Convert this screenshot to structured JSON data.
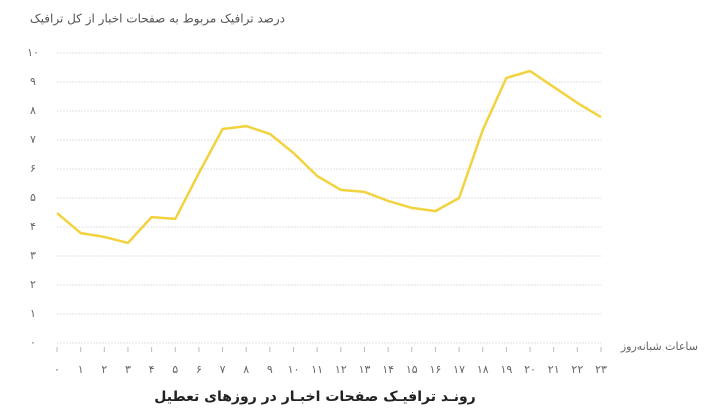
{
  "chart_data": {
    "type": "line",
    "title": "درصد ترافیک مربوط به صفحات اخبار از کل ترافیک",
    "subtitle": "رونـد ترافیـک صفحات اخبـار در روزهای تعطیل",
    "x_label": "ساعات شبانه‌روز",
    "categories": [
      "۰",
      "۱",
      "۲",
      "۳",
      "۴",
      "۵",
      "۶",
      "۷",
      "۸",
      "۹",
      "۱۰",
      "۱۱",
      "۱۲",
      "۱۳",
      "۱۴",
      "۱۵",
      "۱۶",
      "۱۷",
      "۱۸",
      "۱۹",
      "۲۰",
      "۲۱",
      "۲۲",
      "۲۳"
    ],
    "values": [
      4.48,
      3.79,
      3.66,
      3.45,
      4.34,
      4.28,
      5.86,
      7.38,
      7.48,
      7.21,
      6.55,
      5.76,
      5.28,
      5.21,
      4.9,
      4.66,
      4.55,
      5.0,
      7.34,
      9.14,
      9.38,
      8.83,
      8.28,
      7.79
    ],
    "color": "#f2d33f",
    "ylim": [
      0,
      10
    ],
    "yticks": [
      {
        "value": 0,
        "label": "۰"
      },
      {
        "value": 1,
        "label": "۱"
      },
      {
        "value": 2,
        "label": "۲"
      },
      {
        "value": 3,
        "label": "۳"
      },
      {
        "value": 4,
        "label": "۴"
      },
      {
        "value": 5,
        "label": "۵"
      },
      {
        "value": 6,
        "label": "۶"
      },
      {
        "value": 7,
        "label": "۷"
      },
      {
        "value": 8,
        "label": "۸"
      },
      {
        "value": 9,
        "label": "۹"
      },
      {
        "value": 10,
        "label": "۱۰"
      }
    ],
    "grid": true
  }
}
